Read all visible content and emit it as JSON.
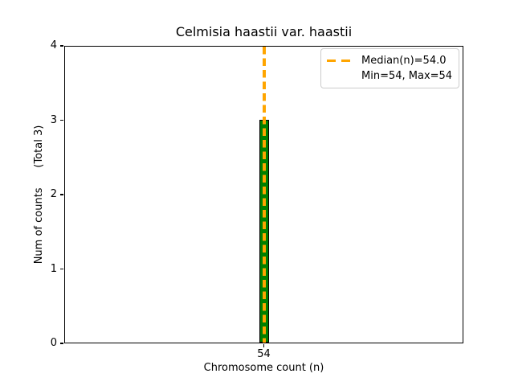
{
  "chart_data": {
    "type": "bar",
    "title": "Celmisia haastii var. haastii",
    "xlabel": "Chromosome count (n)",
    "ylabel": "Num of counts      (Total 3)",
    "categories": [
      54
    ],
    "values": [
      3
    ],
    "total_counts": 3,
    "ylim": [
      0,
      4
    ],
    "yticks": [
      0,
      1,
      2,
      3,
      4
    ],
    "xtick_labels": [
      "54"
    ],
    "grid": false,
    "bar_color": "#008000",
    "bar_edge_color": "#000000",
    "median_line": {
      "x": 54,
      "value_label": "54.0",
      "color": "#FFA500",
      "style": "dashed"
    },
    "stats": {
      "median": 54.0,
      "min": 54,
      "max": 54
    },
    "legend": {
      "position": "upper right",
      "entries": [
        {
          "label": "Median(n)=54.0",
          "handle": "orange-dashed-line"
        },
        {
          "label": "Min=54, Max=54",
          "handle": "none"
        }
      ]
    }
  }
}
